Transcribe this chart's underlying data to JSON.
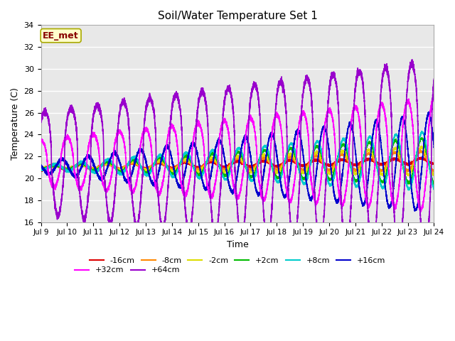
{
  "title": "Soil/Water Temperature Set 1",
  "xlabel": "Time",
  "ylabel": "Temperature (C)",
  "ylim": [
    16,
    34
  ],
  "yticks": [
    16,
    18,
    20,
    22,
    24,
    26,
    28,
    30,
    32,
    34
  ],
  "x_start_day": 9,
  "x_end_day": 24,
  "x_tick_days": [
    9,
    10,
    11,
    12,
    13,
    14,
    15,
    16,
    17,
    18,
    19,
    20,
    21,
    22,
    23,
    24
  ],
  "annotation_text": "EE_met",
  "annotation_bg": "#ffffcc",
  "annotation_border": "#aaaa00",
  "annotation_text_color": "#880000",
  "bg_color": "#ffffff",
  "plot_bg": "#e8e8e8",
  "series_colors": {
    "-16cm": "#dd0000",
    "-8cm": "#ff8800",
    "-2cm": "#dddd00",
    "+2cm": "#00bb00",
    "+8cm": "#00cccc",
    "+16cm": "#0000cc",
    "+32cm": "#ff00ff",
    "+64cm": "#9900cc"
  },
  "legend_order": [
    "-16cm",
    "-8cm",
    "-2cm",
    "+2cm",
    "+8cm",
    "+16cm",
    "+32cm",
    "+64cm"
  ]
}
